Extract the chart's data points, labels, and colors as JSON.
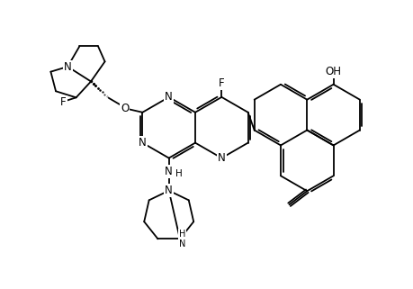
{
  "background_color": "#ffffff",
  "line_color": "#000000",
  "line_width": 1.3,
  "font_size": 8.5,
  "figsize": [
    4.6,
    3.21
  ],
  "dpi": 100,
  "xlim": [
    0.0,
    9.2
  ],
  "ylim": [
    1.0,
    7.8
  ]
}
